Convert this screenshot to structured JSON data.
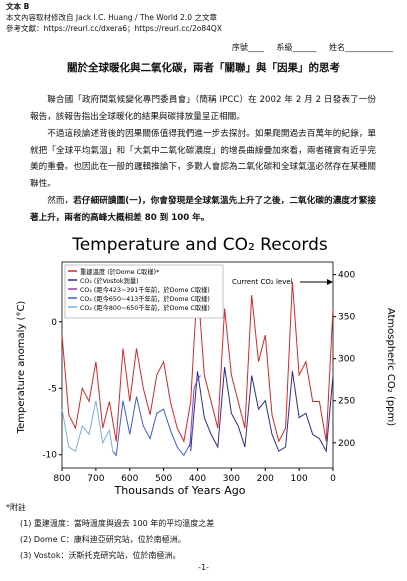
{
  "header": {
    "label": "文本 B",
    "source": "本文內容取材修改自 Jack I.C. Huang / The World 2.0 之文章",
    "references": "參考文獻：https://reurl.cc/dxera6；https://reurl.cc/2o84QX"
  },
  "form": {
    "serial": "序號____",
    "department": "系級______",
    "name": "姓名____________"
  },
  "title": "關於全球暖化與二氧化碳，兩者「關聯」與「因果」的思考",
  "paragraphs": {
    "p1": "聯合國「政府間氣候變化專門委員會」（簡稱 IPCC）在 2002 年 2 月 2 日發表了一份報告，該報告指出全球暖化的結果與碳排放量呈正相關。",
    "p2": "不過這段論述背後的因果關係值得我們進一步去探討。如果爬開過去百萬年的紀錄，單就把「全球平均氣溫」和「大氣中二氧化碳濃度」的增長曲線疊加來看，兩者確實有近乎完美的重疊。也因此在一般的邏輯推論下，多數人會認為二氧化碳和全球氣溫必然存在某種關聯性。",
    "p3_lead": "然而，",
    "p3_emphasis": "若仔細研讀圖(一)，你會發現是全球氣溫先上升了之後，二氧化碳的濃度才緊接著上升，兩者的高峰大概相差 80 到 100 年。"
  },
  "chart_data": {
    "type": "line",
    "title": "Temperature and CO₂ Records",
    "x_label": "Thousands of Years Ago",
    "y_label": "Temperature anomaly (°C)",
    "y2_label": "Atmospheric CO₂ (ppm)",
    "annotation": "Current CO₂ level",
    "xlim": [
      800,
      0
    ],
    "xticks": [
      800,
      700,
      600,
      500,
      400,
      300,
      200,
      100,
      0
    ],
    "ylim": [
      -11,
      4.5
    ],
    "yticks": [
      -10,
      -5,
      0
    ],
    "y2lim": [
      170,
      415
    ],
    "y2ticks": [
      200,
      250,
      300,
      350,
      400
    ],
    "series": [
      {
        "name": "重建溫度 (於Dome C取樣)*",
        "color": "#d62728",
        "axis": "y",
        "x": [
          800,
          780,
          760,
          740,
          720,
          700,
          680,
          660,
          640,
          620,
          600,
          580,
          560,
          540,
          520,
          500,
          480,
          460,
          440,
          420,
          400,
          380,
          360,
          340,
          320,
          300,
          280,
          260,
          240,
          220,
          200,
          180,
          160,
          140,
          120,
          100,
          80,
          60,
          40,
          20,
          0
        ],
        "values": [
          -1,
          -7,
          -8,
          -5,
          -6,
          -3,
          -8,
          -6,
          -9,
          -2,
          -6,
          -2,
          -5,
          -7,
          -4,
          -3,
          -6,
          -8,
          -9,
          -6,
          3,
          -4,
          -6,
          -8,
          1,
          -4,
          -6,
          -8,
          2,
          -3,
          -1,
          -7,
          -9,
          -8,
          3,
          -4,
          -3,
          -6,
          -6,
          -9,
          1
        ]
      },
      {
        "name": "CO₂ (於Vostok測量)",
        "color": "#2b2b8c",
        "axis": "y2",
        "x": [
          420,
          400,
          380,
          360,
          340,
          320,
          300,
          280,
          260,
          240,
          220,
          200,
          180,
          160,
          140,
          120,
          100,
          80,
          60,
          40,
          20,
          0
        ],
        "values": [
          190,
          285,
          230,
          210,
          195,
          290,
          235,
          220,
          195,
          280,
          240,
          250,
          210,
          190,
          195,
          285,
          230,
          235,
          210,
          205,
          190,
          280
        ]
      },
      {
        "name": "CO₂ (距今423~391千年前，於Dome C取樣)",
        "color": "#8a3fb0",
        "axis": "y2",
        "x": [
          423,
          410,
          400,
          391
        ],
        "values": [
          195,
          265,
          275,
          280
        ]
      },
      {
        "name": "CO₂ (距今650~413千年前，於Dome C取樣)",
        "color": "#3a5fcd",
        "axis": "y2",
        "x": [
          650,
          640,
          620,
          600,
          580,
          560,
          540,
          520,
          500,
          480,
          460,
          440,
          420,
          413
        ],
        "values": [
          190,
          185,
          250,
          210,
          255,
          220,
          205,
          235,
          240,
          215,
          195,
          185,
          200,
          220
        ]
      },
      {
        "name": "CO₂ (距今800~650千年前，於Dome C取樣)",
        "color": "#7ab0e0",
        "axis": "y2",
        "x": [
          800,
          780,
          760,
          740,
          720,
          700,
          680,
          660,
          650
        ],
        "values": [
          240,
          195,
          190,
          220,
          210,
          250,
          200,
          215,
          190
        ]
      }
    ]
  },
  "notes": {
    "heading": "*附註",
    "items": [
      "(1)  重建溫度：當時溫度與過去 100 年的平均溫度之差",
      "(2)  Dome C：康科迪亞研究站，位於南極洲。",
      "(3)  Vostok：沃斯托克研究站，位於南極洲。"
    ]
  },
  "page_number": "-1-"
}
